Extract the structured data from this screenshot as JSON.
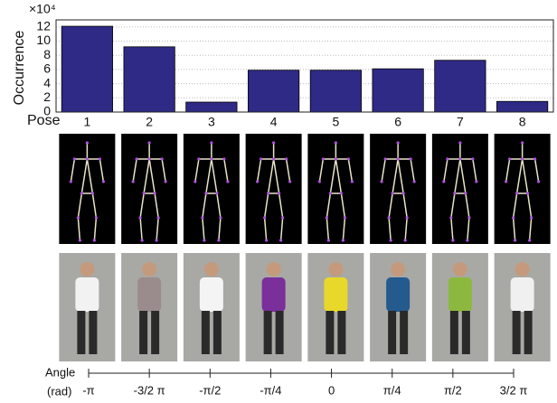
{
  "chart_data": {
    "type": "bar",
    "y_label": "Occurrence",
    "y_multiplier": "×10⁴",
    "x_label": "Pose",
    "categories": [
      "1",
      "2",
      "3",
      "4",
      "5",
      "6",
      "7",
      "8"
    ],
    "values": [
      12.1,
      9.2,
      1.4,
      5.9,
      5.9,
      6.1,
      7.3,
      1.5
    ],
    "color": "#2e2a86",
    "ylim": [
      0,
      13
    ],
    "yticks": [
      0,
      2,
      4,
      6,
      8,
      10,
      12
    ],
    "grid": true,
    "angle_axis": {
      "label": "Angle",
      "unit": "(rad)",
      "ticks": [
        "-π",
        "-3/2 π",
        "-π/2",
        "-π/4",
        "0",
        "π/4",
        "π/2",
        "3/2 π"
      ]
    }
  }
}
